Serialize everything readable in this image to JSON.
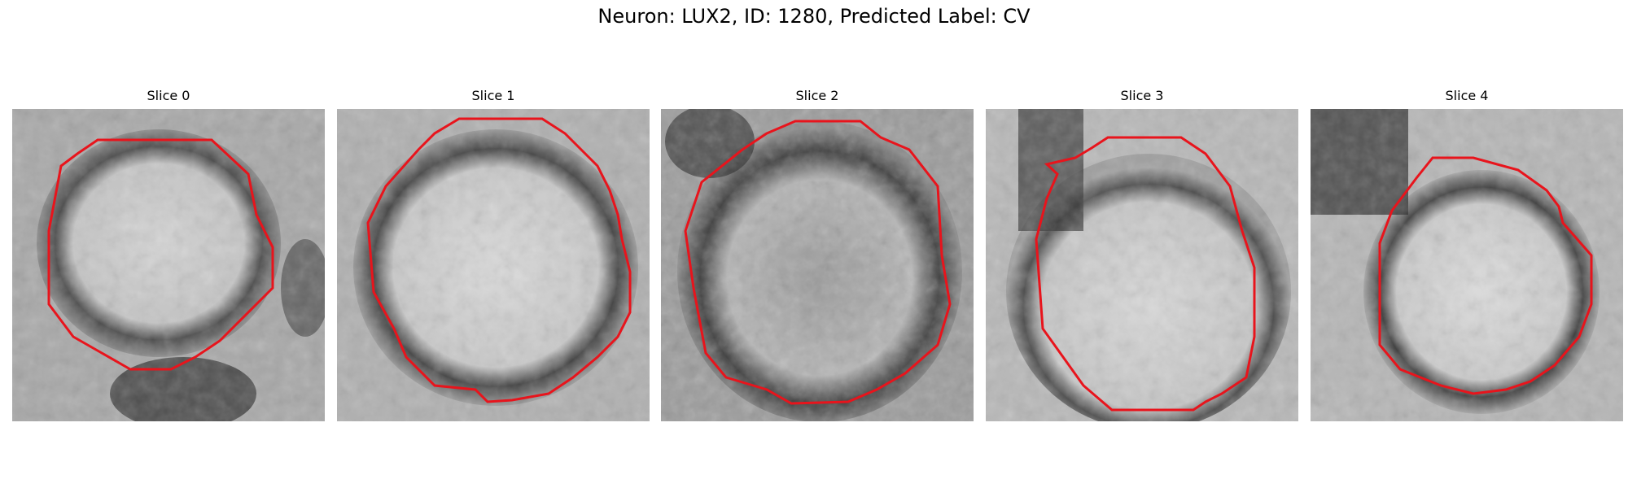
{
  "title": "Neuron: LUX2, ID: 1280, Predicted Label: CV",
  "colors": {
    "contour": "#e8141c",
    "background": "#ffffff",
    "text": "#000000"
  },
  "panels": [
    {
      "title": "Slice 0",
      "image": "grayscale-microscopy-slice-with-red-contour"
    },
    {
      "title": "Slice 1",
      "image": "grayscale-microscopy-slice-with-red-contour"
    },
    {
      "title": "Slice 2",
      "image": "grayscale-microscopy-slice-with-red-contour"
    },
    {
      "title": "Slice 3",
      "image": "grayscale-microscopy-slice-with-red-contour"
    },
    {
      "title": "Slice 4",
      "image": "grayscale-microscopy-slice-with-red-contour"
    }
  ]
}
